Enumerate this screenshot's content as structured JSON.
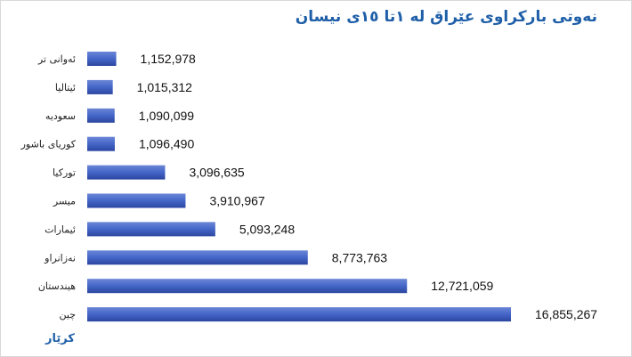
{
  "colors": {
    "title": "#1f5fa8",
    "footer": "#1f5fa8",
    "bar_top": "#6b86d6",
    "bar_mid": "#4466c8",
    "bar_bottom": "#2c46a0"
  },
  "footer": {
    "text": "کرێار"
  },
  "chart_data": {
    "type": "bar",
    "orientation": "horizontal",
    "title": "نەوتی بارکراوی عێراق لە ١تا ١٥ی نیسان",
    "categories": [
      "ئەوانی تر",
      "ئیتالیا",
      "سعودیە",
      "کوریای باشور",
      "تورکیا",
      "میسر",
      "ئیمارات",
      "نەزانراو",
      "هیندستان",
      "چین"
    ],
    "values": [
      1152978,
      1015312,
      1090099,
      1096490,
      3096635,
      3910967,
      5093248,
      8773763,
      12721059,
      16855267
    ],
    "value_labels": [
      "1,152,978",
      "1,015,312",
      "1,090,099",
      "1,096,490",
      "3,096,635",
      "3,910,967",
      "5,093,248",
      "8,773,763",
      "12,721,059",
      "16,855,267"
    ],
    "xlim": [
      0,
      16855267
    ],
    "grid": false,
    "legend": "none",
    "xlabel": "",
    "ylabel": ""
  }
}
